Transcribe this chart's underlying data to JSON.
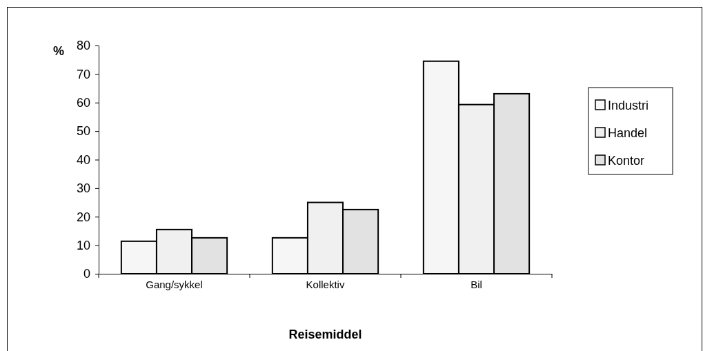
{
  "chart_data": {
    "type": "bar",
    "xlabel": "Reisemiddel",
    "ylabel": "%",
    "categories": [
      "Gang/sykkel",
      "Kollektiv",
      "Bil"
    ],
    "series": [
      {
        "name": "Industri",
        "color": "#f6f6f6",
        "values": [
          11.4,
          12.6,
          74.5
        ]
      },
      {
        "name": "Handel",
        "color": "#f0f0f0",
        "values": [
          15.5,
          25.0,
          59.3
        ]
      },
      {
        "name": "Kontor",
        "color": "#e2e2e2",
        "values": [
          12.6,
          22.5,
          63.1
        ]
      }
    ],
    "ylim": [
      0,
      80
    ],
    "yticks": [
      0,
      10,
      20,
      30,
      40,
      50,
      60,
      70,
      80
    ],
    "grid": false,
    "legend": "right"
  }
}
